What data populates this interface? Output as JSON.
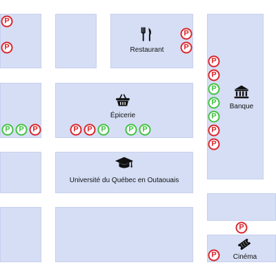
{
  "places": {
    "restaurant": {
      "label": "Restaurant",
      "icon": "fork-knife-icon"
    },
    "epicerie": {
      "label": "Épicerie",
      "icon": "shopping-basket-icon"
    },
    "banque": {
      "label": "Banque",
      "icon": "bank-icon"
    },
    "universite": {
      "label": "Université du Québec en Outaouais",
      "icon": "graduation-cap-icon"
    },
    "cinema": {
      "label": "Cinéma",
      "icon": "movie-ticket-icon"
    }
  },
  "parking": {
    "glyph": "P",
    "colors": {
      "occupied": "#d9262c",
      "available": "#42c242"
    },
    "spots": [
      {
        "status": "occupied",
        "icon": "parking-icon"
      },
      {
        "status": "occupied",
        "icon": "parking-icon"
      },
      {
        "status": "occupied",
        "icon": "parking-icon"
      },
      {
        "status": "occupied",
        "icon": "parking-icon"
      },
      {
        "status": "available",
        "icon": "parking-icon"
      },
      {
        "status": "available",
        "icon": "parking-icon"
      },
      {
        "status": "occupied",
        "icon": "parking-icon"
      },
      {
        "status": "occupied",
        "icon": "parking-icon"
      },
      {
        "status": "occupied",
        "icon": "parking-icon"
      },
      {
        "status": "available",
        "icon": "parking-icon"
      },
      {
        "status": "available",
        "icon": "parking-icon"
      },
      {
        "status": "available",
        "icon": "parking-icon"
      },
      {
        "status": "available",
        "icon": "parking-icon"
      },
      {
        "status": "available",
        "icon": "parking-icon"
      },
      {
        "status": "available",
        "icon": "parking-icon"
      },
      {
        "status": "occupied",
        "icon": "parking-icon"
      },
      {
        "status": "occupied",
        "icon": "parking-icon"
      },
      {
        "status": "occupied",
        "icon": "parking-icon"
      },
      {
        "status": "occupied",
        "icon": "parking-icon"
      },
      {
        "status": "occupied",
        "icon": "parking-icon"
      },
      {
        "status": "occupied",
        "icon": "parking-icon"
      },
      {
        "status": "available",
        "icon": "parking-icon"
      },
      {
        "status": "available",
        "icon": "parking-icon"
      },
      {
        "status": "occupied",
        "icon": "parking-icon"
      },
      {
        "status": "occupied",
        "icon": "parking-icon"
      }
    ]
  },
  "colors": {
    "block": "#d5def5",
    "road": "#ffffff"
  }
}
